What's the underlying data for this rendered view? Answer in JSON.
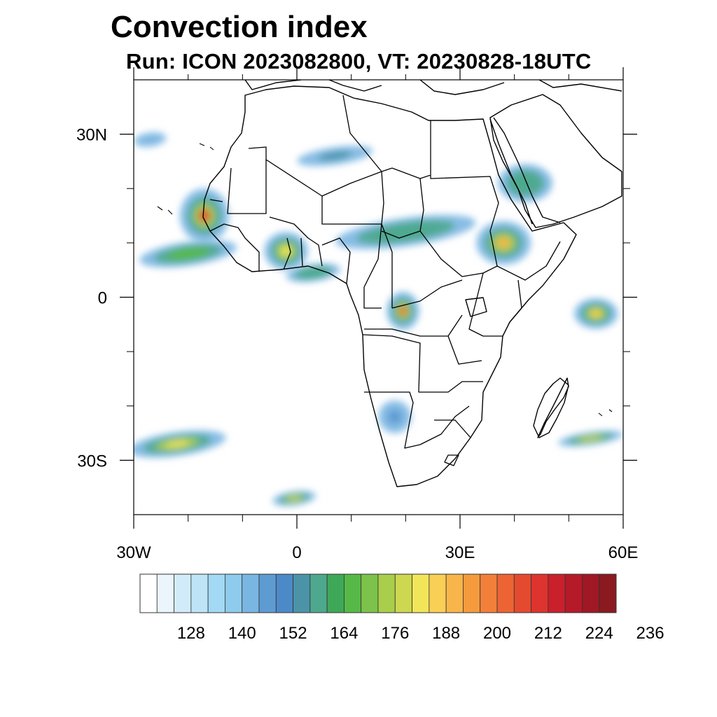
{
  "title": "Convection index",
  "subtitle": "Run: ICON 2023082800,  VT: 20230828-18UTC",
  "map": {
    "lon_range": [
      -30,
      60
    ],
    "lat_range": [
      -40,
      40
    ],
    "x_ticks": [
      {
        "lon": -30,
        "label": "30W"
      },
      {
        "lon": 0,
        "label": "0"
      },
      {
        "lon": 30,
        "label": "30E"
      },
      {
        "lon": 60,
        "label": "60E"
      }
    ],
    "y_ticks": [
      {
        "lat": 30,
        "label": "30N"
      },
      {
        "lat": 0,
        "label": "0"
      },
      {
        "lat": -30,
        "label": "30S"
      }
    ],
    "minor_lons": [
      -20,
      -10,
      10,
      20,
      40,
      50
    ],
    "minor_lats": [
      20,
      10,
      -10,
      -20
    ],
    "convection_areas": [
      {
        "name": "west-africa-coast",
        "lon": -17,
        "lat": 15,
        "rlon": 4.5,
        "rlat": 5,
        "level": 200
      },
      {
        "name": "guinea-coast-band",
        "lon": -20,
        "lat": 8,
        "rlon": 9,
        "rlat": 2.2,
        "level": 160
      },
      {
        "name": "ghana-togo-cluster",
        "lon": -2,
        "lat": 8.5,
        "rlon": 4,
        "rlat": 3.5,
        "level": 176
      },
      {
        "name": "gulf-of-guinea-band",
        "lon": 3,
        "lat": 4.5,
        "rlon": 5,
        "rlat": 1.6,
        "level": 150
      },
      {
        "name": "sahel-band",
        "lon": 20,
        "lat": 12,
        "rlon": 13,
        "rlat": 2.6,
        "level": 152
      },
      {
        "name": "ethiopia-cluster",
        "lon": 38,
        "lat": 10,
        "rlon": 5,
        "rlat": 4,
        "level": 184
      },
      {
        "name": "congo-cluster",
        "lon": 19.5,
        "lat": -2.5,
        "rlon": 3,
        "rlat": 3.5,
        "level": 196
      },
      {
        "name": "saudi-arabia-cluster",
        "lon": 42,
        "lat": 21,
        "rlon": 5,
        "rlat": 3.5,
        "level": 150
      },
      {
        "name": "sahara-north-band",
        "lon": 7,
        "lat": 26,
        "rlon": 7,
        "rlat": 1.6,
        "level": 148
      },
      {
        "name": "indian-ocean-cluster",
        "lon": 55,
        "lat": -3,
        "rlon": 4,
        "rlat": 2.8,
        "level": 180
      },
      {
        "name": "madagascar-band",
        "lon": 54,
        "lat": -26,
        "rlon": 6,
        "rlat": 1.2,
        "level": 170
      },
      {
        "name": "south-atlantic-band",
        "lon": -22,
        "lat": -27,
        "rlon": 9,
        "rlat": 2.2,
        "level": 176
      },
      {
        "name": "south-atlantic-band-2",
        "lon": -0.5,
        "lat": -37,
        "rlon": 4,
        "rlat": 1.3,
        "level": 170
      },
      {
        "name": "namibia-cluster",
        "lon": 18,
        "lat": -22,
        "rlon": 3,
        "rlat": 3,
        "level": 140
      },
      {
        "name": "north-atlantic-band",
        "lon": -27,
        "lat": 29,
        "rlon": 3,
        "rlat": 1.3,
        "level": 136
      }
    ]
  },
  "colorbar": {
    "colors": [
      "#ffffff",
      "#eaf5fc",
      "#d1ecf8",
      "#bde4f7",
      "#a3d9f4",
      "#8ecbec",
      "#7ab6e2",
      "#5e9bd1",
      "#4c8ac7",
      "#4b94a8",
      "#4ea88e",
      "#3fa858",
      "#56b947",
      "#7dc24b",
      "#a8ce4b",
      "#cdd74f",
      "#f1e65a",
      "#f9cf55",
      "#f7b54a",
      "#f59b3e",
      "#f2803a",
      "#ec6434",
      "#e44a30",
      "#dd342f",
      "#c9202c",
      "#b51a28",
      "#a01823",
      "#8a1a1f"
    ],
    "labels": [
      "128",
      "140",
      "152",
      "164",
      "176",
      "188",
      "200",
      "212",
      "224",
      "236"
    ]
  }
}
